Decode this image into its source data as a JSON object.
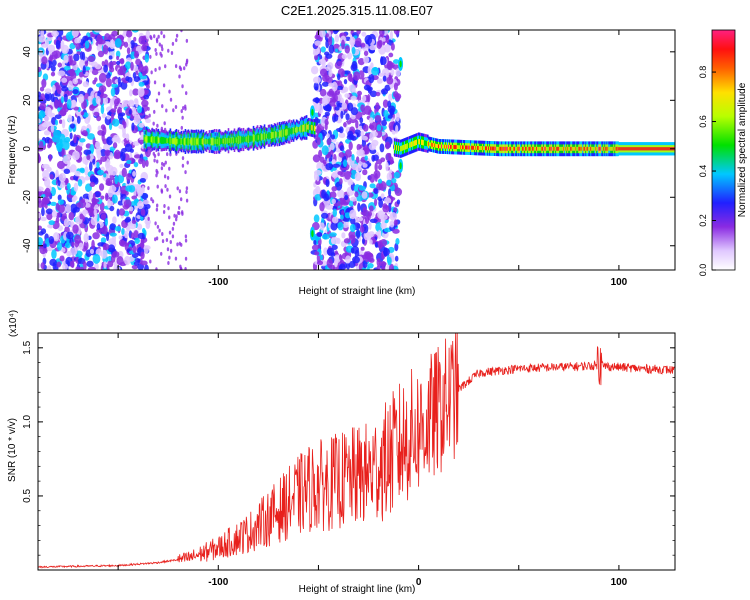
{
  "figure_title": "C2E1.2025.315.11.08.E07",
  "chart_data": [
    {
      "type": "heatmap",
      "title": "",
      "xlabel": "Height of straight line (km)",
      "ylabel": "Frequency (Hz)",
      "xlim": [
        -190,
        128
      ],
      "ylim": [
        -50,
        49
      ],
      "xticks": [
        -100,
        100
      ],
      "xticks_minor": [
        -150,
        -50,
        0,
        50
      ],
      "yticks": [
        -40,
        -20,
        0,
        20,
        40
      ],
      "colorbar": {
        "label": "Normalized spectral amplitude",
        "range": [
          0.0,
          0.97
        ],
        "ticks": [
          0.0,
          0.2,
          0.4,
          0.6,
          0.8
        ],
        "colormap": "rainbow (white-purple-blue-cyan-green-yellow-red-pink)"
      },
      "features": {
        "noise_regions_km": [
          [
            -190,
            -135
          ],
          [
            -52,
            -10
          ]
        ],
        "signal_trace": [
          {
            "x": -137,
            "f": 4
          },
          {
            "x": -120,
            "f": 3
          },
          {
            "x": -100,
            "f": 3
          },
          {
            "x": -85,
            "f": 4
          },
          {
            "x": -70,
            "f": 6
          },
          {
            "x": -60,
            "f": 8
          },
          {
            "x": -55,
            "f": 9
          },
          {
            "x": -9,
            "f": 0
          },
          {
            "x": 0,
            "f": 3
          },
          {
            "x": 10,
            "f": 1
          },
          {
            "x": 40,
            "f": 0
          },
          {
            "x": 128,
            "f": 0
          }
        ]
      }
    },
    {
      "type": "line",
      "title": "",
      "xlabel": "Height of straight line (km)",
      "ylabel": "SNR (10 * v/v)",
      "y_multiplier": "(x10⁴)",
      "xlim": [
        -190,
        128
      ],
      "ylim": [
        0,
        1.6
      ],
      "xticks": [
        -100,
        0,
        100
      ],
      "yticks": [
        0.5,
        1.0,
        1.5
      ],
      "line_color": "#e8201c",
      "series": [
        {
          "values_envelope": [
            {
              "x": -190,
              "y": 0.02
            },
            {
              "x": -150,
              "y": 0.03
            },
            {
              "x": -130,
              "y": 0.05
            },
            {
              "x": -115,
              "y": 0.08
            },
            {
              "x": -100,
              "y": 0.15
            },
            {
              "x": -85,
              "y": 0.25
            },
            {
              "x": -70,
              "y": 0.4
            },
            {
              "x": -55,
              "y": 0.55
            },
            {
              "x": -40,
              "y": 0.6
            },
            {
              "x": -25,
              "y": 0.65
            },
            {
              "x": -15,
              "y": 0.75
            },
            {
              "x": -5,
              "y": 0.9
            },
            {
              "x": 5,
              "y": 1.0
            },
            {
              "x": 15,
              "y": 1.15
            },
            {
              "x": 20,
              "y": 1.22
            },
            {
              "x": 30,
              "y": 1.33
            },
            {
              "x": 50,
              "y": 1.36
            },
            {
              "x": 90,
              "y": 1.38
            },
            {
              "x": 110,
              "y": 1.36
            },
            {
              "x": 128,
              "y": 1.35
            }
          ]
        }
      ]
    }
  ]
}
